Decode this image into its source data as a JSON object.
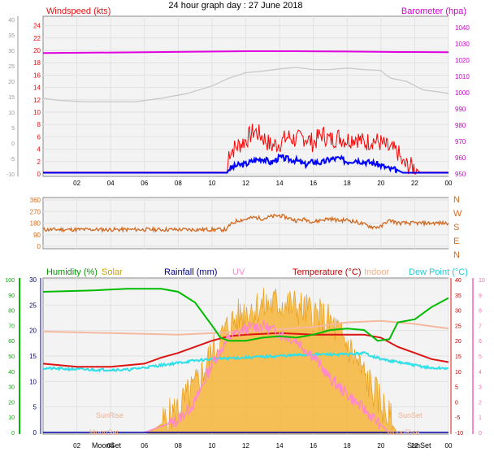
{
  "title": "24 hour graph day : 27 June 2018",
  "chart_data": [
    {
      "type": "line",
      "name": "wind-baro",
      "left_label": "Windspeed (kts)",
      "right_label": "Barometer (hpa)",
      "left_ticks": [
        24,
        22,
        20,
        18,
        16,
        14,
        12,
        10,
        8,
        6,
        4,
        2,
        0
      ],
      "left_outer_ticks": [
        40,
        35,
        30,
        25,
        20,
        15,
        10,
        5,
        0,
        -5,
        -10
      ],
      "right_ticks": [
        1040,
        1030,
        1020,
        1010,
        1000,
        990,
        980,
        970,
        960,
        950
      ],
      "x_ticks": [
        "02",
        "04",
        "06",
        "08",
        "10",
        "12",
        "14",
        "16",
        "18",
        "20",
        "22",
        "00"
      ],
      "xlim_hours": [
        0,
        24
      ],
      "ylim_kts": [
        0,
        25
      ],
      "ylim_hpa": [
        950,
        1045
      ],
      "barometer_hpa": [
        [
          0,
          1024.4
        ],
        [
          3,
          1024.6
        ],
        [
          6,
          1024.9
        ],
        [
          9,
          1025.2
        ],
        [
          12,
          1025.5
        ],
        [
          15,
          1025.5
        ],
        [
          18,
          1025.3
        ],
        [
          21,
          1025.0
        ],
        [
          24,
          1024.9
        ]
      ],
      "temperature_trace_c": [
        [
          0,
          14.5
        ],
        [
          1,
          13.8
        ],
        [
          2.5,
          13.4
        ],
        [
          5.5,
          13.4
        ],
        [
          7,
          14.5
        ],
        [
          8.5,
          16
        ],
        [
          10,
          18.5
        ],
        [
          11,
          21
        ],
        [
          12,
          22.8
        ],
        [
          13,
          23.3
        ],
        [
          14,
          24
        ],
        [
          15,
          24.5
        ],
        [
          16,
          23.8
        ],
        [
          17,
          23.8
        ],
        [
          18,
          24.3
        ],
        [
          19,
          23.8
        ],
        [
          20,
          23.5
        ],
        [
          20.3,
          22
        ],
        [
          20.6,
          21
        ],
        [
          21.5,
          20
        ],
        [
          22.5,
          17.2
        ],
        [
          23.5,
          16.5
        ],
        [
          24,
          16
        ]
      ],
      "temperature_trace_axis": [
        40,
        35,
        30,
        25,
        20,
        15,
        10,
        5,
        0,
        -5,
        -10
      ],
      "gust_kts": [
        [
          0,
          0.3
        ],
        [
          10.9,
          0.3
        ],
        [
          11,
          3.5
        ],
        [
          11.5,
          4.5
        ],
        [
          12,
          5.5
        ],
        [
          12.5,
          7
        ],
        [
          13,
          6
        ],
        [
          13.5,
          4.5
        ],
        [
          14,
          5
        ],
        [
          14.5,
          6
        ],
        [
          15,
          5.5
        ],
        [
          15.5,
          6
        ],
        [
          16,
          5
        ],
        [
          16.5,
          6.5
        ],
        [
          17,
          5.5
        ],
        [
          17.5,
          6
        ],
        [
          18,
          5.5
        ],
        [
          18.5,
          6
        ],
        [
          19,
          5
        ],
        [
          19.5,
          5.5
        ],
        [
          20,
          5
        ],
        [
          20.5,
          4
        ],
        [
          21,
          3.5
        ],
        [
          21.3,
          1.5
        ],
        [
          22,
          1
        ],
        [
          22.3,
          0.3
        ],
        [
          24,
          0.3
        ]
      ],
      "avg_kts": [
        [
          0,
          0.2
        ],
        [
          10.9,
          0.2
        ],
        [
          11,
          0.8
        ],
        [
          11.5,
          1.4
        ],
        [
          12,
          1.6
        ],
        [
          12.5,
          2.2
        ],
        [
          13,
          2.5
        ],
        [
          13.5,
          1.8
        ],
        [
          14,
          2.7
        ],
        [
          14.5,
          2.4
        ],
        [
          15,
          2.2
        ],
        [
          15.5,
          1.5
        ],
        [
          16,
          2.0
        ],
        [
          16.5,
          1.8
        ],
        [
          17,
          2.4
        ],
        [
          17.5,
          2.5
        ],
        [
          18,
          2.0
        ],
        [
          18.5,
          2.3
        ],
        [
          19,
          2.0
        ],
        [
          19.5,
          1.8
        ],
        [
          20,
          1.4
        ],
        [
          20.5,
          0.8
        ],
        [
          21,
          0.6
        ],
        [
          21.3,
          0.2
        ],
        [
          24,
          0.2
        ]
      ]
    },
    {
      "type": "line",
      "name": "wind-direction",
      "left_ticks": [
        360,
        270,
        180,
        90,
        0
      ],
      "right_ticks": [
        "N",
        "W",
        "S",
        "E",
        "N"
      ],
      "ylim_deg": [
        0,
        360
      ],
      "direction_deg": [
        [
          0,
          130
        ],
        [
          10.9,
          130
        ],
        [
          11,
          160
        ],
        [
          11.5,
          200
        ],
        [
          12,
          210
        ],
        [
          12.5,
          225
        ],
        [
          13,
          215
        ],
        [
          13.5,
          230
        ],
        [
          14,
          240
        ],
        [
          14.5,
          220
        ],
        [
          15,
          200
        ],
        [
          15.5,
          210
        ],
        [
          16,
          190
        ],
        [
          16.5,
          205
        ],
        [
          17,
          215
        ],
        [
          17.5,
          200
        ],
        [
          18,
          205
        ],
        [
          18.5,
          190
        ],
        [
          19,
          170
        ],
        [
          19.5,
          150
        ],
        [
          20,
          150
        ],
        [
          20.3,
          190
        ],
        [
          20.6,
          200
        ],
        [
          21,
          180
        ],
        [
          24,
          180
        ]
      ]
    },
    {
      "type": "area",
      "name": "multi",
      "labels": {
        "humidity": "Humidity (%)",
        "solar": "Solar",
        "rainfall": "Rainfall (mm)",
        "uv": "UV",
        "temperature": "Temperature (°C)",
        "indoor": "Indoor",
        "dewpoint": "Dew Point (°C)"
      },
      "humidity_ticks": [
        100,
        90,
        80,
        70,
        60,
        50,
        40,
        30,
        20,
        10,
        0
      ],
      "rainfall_ticks": [
        30,
        25,
        20,
        15,
        10,
        5,
        0
      ],
      "temperature_ticks": [
        40,
        35,
        30,
        25,
        20,
        15,
        10,
        5,
        0,
        -5,
        -10
      ],
      "uv_ticks": [
        10,
        9,
        8,
        7,
        6,
        5,
        4,
        3,
        2,
        1,
        0
      ],
      "x_ticks": [
        "02",
        "04",
        "06",
        "08",
        "10",
        "12",
        "14",
        "16",
        "18",
        "20",
        "22",
        "00"
      ],
      "annotations": {
        "sunrise": "SunRise",
        "sunset": "SunSet",
        "moonset": "MoonSet",
        "moonrise": "MoonRise",
        "sunset_axis": "SunSet",
        "moonset_axis": "MoonSet"
      },
      "humidity_pct": [
        [
          0,
          92
        ],
        [
          3,
          93
        ],
        [
          5,
          94
        ],
        [
          7,
          94
        ],
        [
          8,
          92
        ],
        [
          9,
          85
        ],
        [
          10,
          70
        ],
        [
          10.5,
          62
        ],
        [
          11,
          60
        ],
        [
          12,
          60
        ],
        [
          13,
          62
        ],
        [
          14,
          63
        ],
        [
          15,
          62
        ],
        [
          16,
          64
        ],
        [
          17,
          67
        ],
        [
          18,
          68
        ],
        [
          19,
          67
        ],
        [
          19.8,
          60
        ],
        [
          20.5,
          61
        ],
        [
          21,
          72
        ],
        [
          22,
          74
        ],
        [
          23,
          82
        ],
        [
          24,
          88
        ]
      ],
      "temperature_c": [
        [
          0,
          12.5
        ],
        [
          2,
          11.5
        ],
        [
          4,
          11.5
        ],
        [
          6,
          12.5
        ],
        [
          7,
          14.5
        ],
        [
          8,
          16
        ],
        [
          9,
          18
        ],
        [
          10,
          20
        ],
        [
          11,
          21.5
        ],
        [
          12,
          22
        ],
        [
          14,
          22.5
        ],
        [
          16,
          22
        ],
        [
          18,
          22
        ],
        [
          19,
          22
        ],
        [
          20,
          21
        ],
        [
          21,
          18
        ],
        [
          22,
          16
        ],
        [
          23,
          14
        ],
        [
          24,
          13
        ]
      ],
      "dewpoint_c": [
        [
          0,
          11
        ],
        [
          3,
          10.5
        ],
        [
          5,
          10.5
        ],
        [
          7,
          12
        ],
        [
          9,
          13.5
        ],
        [
          10,
          14
        ],
        [
          12,
          14.5
        ],
        [
          14,
          15
        ],
        [
          16,
          15.5
        ],
        [
          18,
          15.5
        ],
        [
          19,
          16
        ],
        [
          20,
          14
        ],
        [
          21,
          13
        ],
        [
          22,
          12
        ],
        [
          23,
          11
        ],
        [
          24,
          11
        ]
      ],
      "indoor_c": [
        [
          0,
          23
        ],
        [
          4,
          22.5
        ],
        [
          8,
          22
        ],
        [
          12,
          23
        ],
        [
          16,
          24.5
        ],
        [
          18,
          26
        ],
        [
          20,
          26.5
        ],
        [
          22,
          25.5
        ],
        [
          24,
          24
        ]
      ],
      "solar_rel": [
        [
          6.2,
          0
        ],
        [
          7,
          0.06
        ],
        [
          8,
          0.16
        ],
        [
          9,
          0.3
        ],
        [
          10,
          0.52
        ],
        [
          11,
          0.7
        ],
        [
          12,
          0.8
        ],
        [
          13,
          0.83
        ],
        [
          14,
          0.85
        ],
        [
          15,
          0.82
        ],
        [
          16,
          0.78
        ],
        [
          17,
          0.72
        ],
        [
          18,
          0.58
        ],
        [
          19,
          0.38
        ],
        [
          20,
          0.2
        ],
        [
          20.7,
          0.05
        ],
        [
          21,
          0
        ]
      ],
      "uv_index": [
        [
          6,
          0
        ],
        [
          8,
          0.8
        ],
        [
          9,
          2
        ],
        [
          10,
          4.5
        ],
        [
          11,
          6.2
        ],
        [
          12,
          6.8
        ],
        [
          13,
          7
        ],
        [
          14,
          6.5
        ],
        [
          15,
          6
        ],
        [
          16,
          5
        ],
        [
          17,
          3.5
        ],
        [
          18,
          2.5
        ],
        [
          19,
          1.5
        ],
        [
          20,
          0.5
        ],
        [
          20.5,
          0
        ]
      ],
      "rainfall_mm": [
        [
          0,
          0
        ],
        [
          24,
          0
        ]
      ]
    }
  ],
  "colors": {
    "grid": "#e4e4e4",
    "panel_bg": "#f3f3f3",
    "barometer": "#e000e0",
    "temp_trace": "#c8c8c8",
    "gust": "#ff0000",
    "avg": "#0000ff",
    "direction": "#d2691e",
    "humidity": "#00bb00",
    "solar": "#f5b53a",
    "temperature": "#dc1414",
    "indoor": "#f5b9a0",
    "dewpoint": "#30e0e8",
    "uv": "#ff88cc",
    "rainfall": "#0000a0"
  }
}
